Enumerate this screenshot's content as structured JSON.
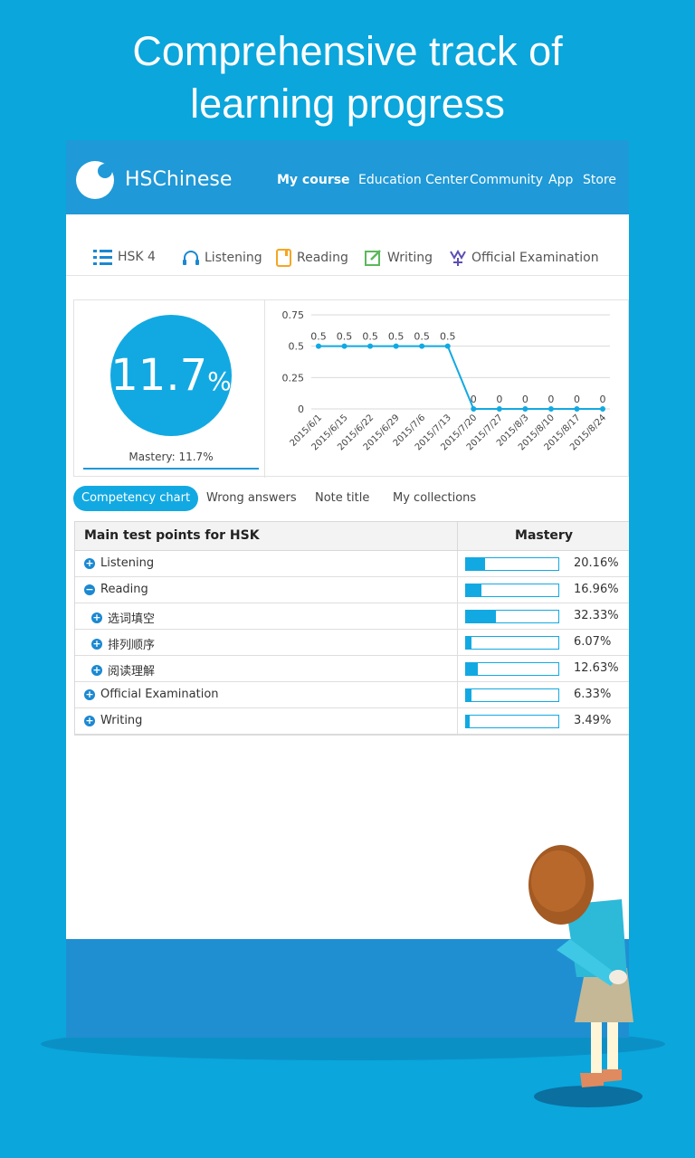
{
  "headline": {
    "line1": "Comprehensive track of",
    "line2": "learning progress"
  },
  "app": {
    "brand": "HSChinese"
  },
  "topnav": [
    "My course",
    "Education Center",
    "Community",
    "App",
    "Store"
  ],
  "subnav": {
    "level": "HSK 4",
    "items": [
      "Listening",
      "Reading",
      "Writing",
      "Official Examination"
    ]
  },
  "summary": {
    "percent": "11.7",
    "percent_sign": "%",
    "mastery_label": "Mastery: 11.7%"
  },
  "chart_data": {
    "type": "line",
    "x": [
      "2015/6/1",
      "2015/6/15",
      "2015/6/22",
      "2015/6/29",
      "2015/7/6",
      "2015/7/13",
      "2015/7/20",
      "2015/7/27",
      "2015/8/3",
      "2015/8/10",
      "2015/8/17",
      "2015/8/24"
    ],
    "values": [
      0.5,
      0.5,
      0.5,
      0.5,
      0.5,
      0.5,
      0,
      0,
      0,
      0,
      0,
      0
    ],
    "data_labels": [
      "0.5",
      "0.5",
      "0.5",
      "0.5",
      "0.5",
      "0.5",
      "0",
      "0",
      "0",
      "0",
      "0",
      "0"
    ],
    "yticks": [
      "0",
      "0.25",
      "0.5",
      "0.75"
    ],
    "ylim": [
      0,
      0.75
    ],
    "grid": true,
    "color": "#12a9e2"
  },
  "tabs": [
    "Competency chart",
    "Wrong answers",
    "Note title",
    "My collections"
  ],
  "table": {
    "header_points": "Main test points for HSK",
    "header_mastery": "Mastery",
    "rows": [
      {
        "label": "Listening",
        "pct": "20.16%",
        "value": 20.16,
        "sign": "+",
        "indent": 0
      },
      {
        "label": "Reading",
        "pct": "16.96%",
        "value": 16.96,
        "sign": "−",
        "indent": 0
      },
      {
        "label": "选词填空",
        "pct": "32.33%",
        "value": 32.33,
        "sign": "+",
        "indent": 1
      },
      {
        "label": "排列顺序",
        "pct": "6.07%",
        "value": 6.07,
        "sign": "+",
        "indent": 1
      },
      {
        "label": "阅读理解",
        "pct": "12.63%",
        "value": 12.63,
        "sign": "+",
        "indent": 1
      },
      {
        "label": "Official Examination",
        "pct": "6.33%",
        "value": 6.33,
        "sign": "+",
        "indent": 0
      },
      {
        "label": "Writing",
        "pct": "3.49%",
        "value": 3.49,
        "sign": "+",
        "indent": 0
      }
    ]
  },
  "colors": {
    "background": "#0aa6dc",
    "topbar": "#1f99d7",
    "accent": "#12a9e2"
  }
}
